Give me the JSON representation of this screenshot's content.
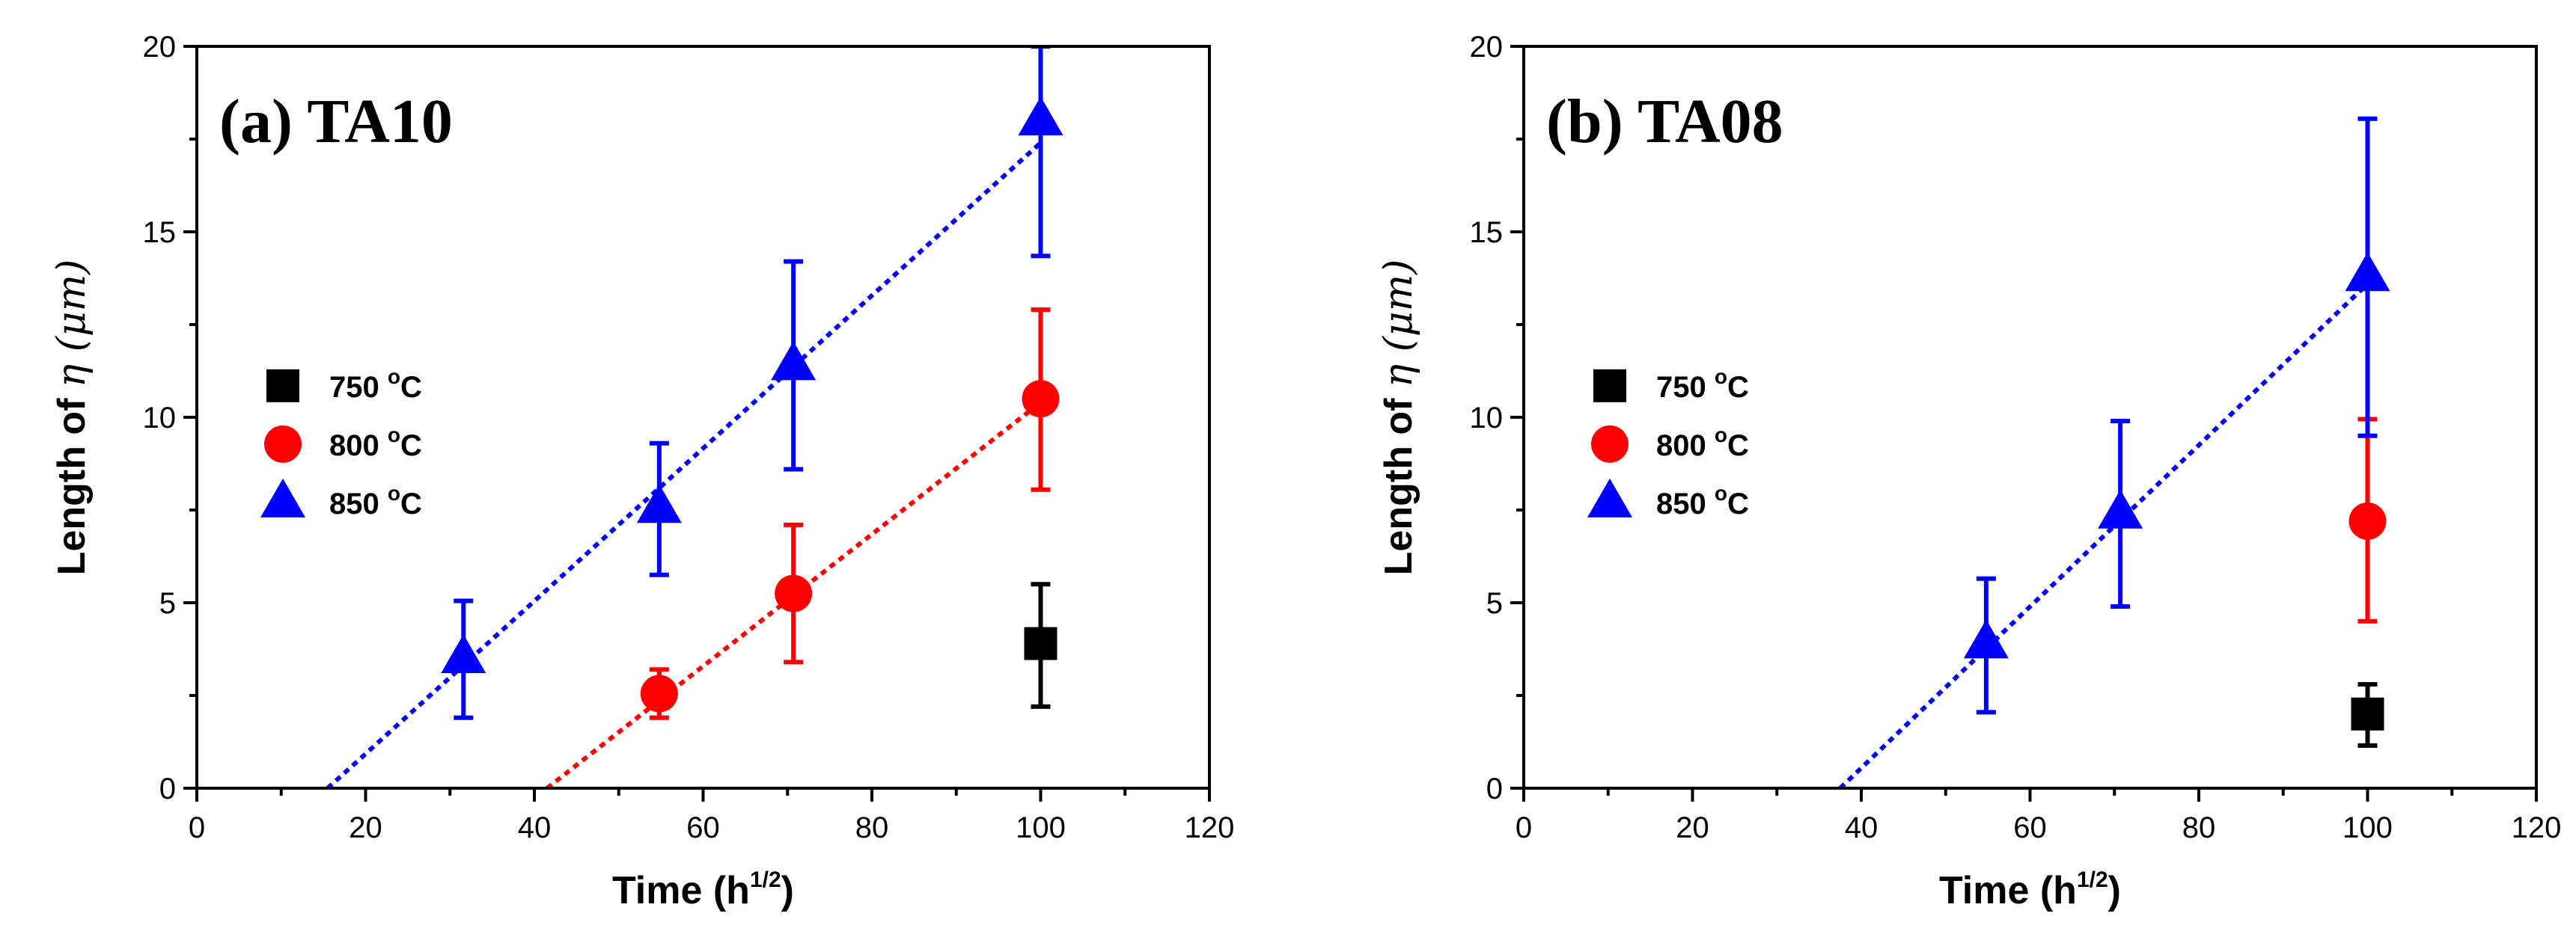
{
  "chart_data": [
    {
      "type": "scatter",
      "title": "(a) TA10",
      "xlabel": "Time (h",
      "xlabel_sup": "1/2",
      "xlabel_end": ")",
      "ylabel": "Length of ",
      "ylabel_symbol": "η",
      "ylabel_unit": " (μm)",
      "xlim": [
        0,
        120
      ],
      "ylim": [
        0,
        20
      ],
      "xticks": [
        0,
        20,
        40,
        60,
        80,
        100,
        120
      ],
      "yticks": [
        0,
        5,
        10,
        15,
        20
      ],
      "legend_position": "center-left",
      "series": [
        {
          "name": "750 °C",
          "label_main": "750 ",
          "label_sup": "o",
          "label_end": "C",
          "marker": "square",
          "color": "#000000",
          "points": [
            {
              "x": 100,
              "y": 3.9,
              "err_low": 2.2,
              "err_high": 5.5
            }
          ]
        },
        {
          "name": "800 °C",
          "label_main": "800 ",
          "label_sup": "o",
          "label_end": "C",
          "marker": "circle",
          "color": "#ff0000",
          "points": [
            {
              "x": 54.8,
              "y": 2.55,
              "err_low": 1.9,
              "err_high": 3.2
            },
            {
              "x": 70.7,
              "y": 5.25,
              "err_low": 3.4,
              "err_high": 7.1
            },
            {
              "x": 100,
              "y": 10.5,
              "err_low": 8.05,
              "err_high": 12.9
            }
          ],
          "fit": {
            "x": [
              41.5,
              100
            ],
            "y": [
              0,
              10.4
            ]
          }
        },
        {
          "name": "850 °C",
          "label_main": "850 ",
          "label_sup": "o",
          "label_end": "C",
          "marker": "triangle",
          "color": "#0000ff",
          "points": [
            {
              "x": 31.6,
              "y": 3.5,
              "err_low": 1.9,
              "err_high": 5.05
            },
            {
              "x": 54.8,
              "y": 7.55,
              "err_low": 5.75,
              "err_high": 9.3
            },
            {
              "x": 70.7,
              "y": 11.4,
              "err_low": 8.6,
              "err_high": 14.2
            },
            {
              "x": 100,
              "y": 18.0,
              "err_low": 14.35,
              "err_high": 20
            }
          ],
          "fit": {
            "x": [
              15.5,
              100
            ],
            "y": [
              0,
              17.4
            ]
          }
        }
      ]
    },
    {
      "type": "scatter",
      "title": "(b) TA08",
      "xlabel": "Time (h",
      "xlabel_sup": "1/2",
      "xlabel_end": ")",
      "ylabel": "Length of ",
      "ylabel_symbol": "η",
      "ylabel_unit": " (μm)",
      "xlim": [
        0,
        120
      ],
      "ylim": [
        0,
        20
      ],
      "xticks": [
        0,
        20,
        40,
        60,
        80,
        100,
        120
      ],
      "yticks": [
        0,
        5,
        10,
        15,
        20
      ],
      "legend_position": "center-left",
      "series": [
        {
          "name": "750 °C",
          "label_main": "750 ",
          "label_sup": "o",
          "label_end": "C",
          "marker": "square",
          "color": "#000000",
          "points": [
            {
              "x": 100,
              "y": 2.0,
              "err_low": 1.15,
              "err_high": 2.8
            }
          ]
        },
        {
          "name": "800 °C",
          "label_main": "800 ",
          "label_sup": "o",
          "label_end": "C",
          "marker": "circle",
          "color": "#ff0000",
          "points": [
            {
              "x": 100,
              "y": 7.2,
              "err_low": 4.5,
              "err_high": 9.95
            }
          ]
        },
        {
          "name": "850 °C",
          "label_main": "850 ",
          "label_sup": "o",
          "label_end": "C",
          "marker": "triangle",
          "color": "#0000ff",
          "points": [
            {
              "x": 54.8,
              "y": 3.9,
              "err_low": 2.05,
              "err_high": 5.65
            },
            {
              "x": 70.7,
              "y": 7.4,
              "err_low": 4.9,
              "err_high": 9.9
            },
            {
              "x": 100,
              "y": 13.8,
              "err_low": 9.5,
              "err_high": 18.05
            }
          ],
          "fit": {
            "x": [
              37.5,
              100
            ],
            "y": [
              0,
              13.6
            ]
          }
        }
      ]
    }
  ]
}
